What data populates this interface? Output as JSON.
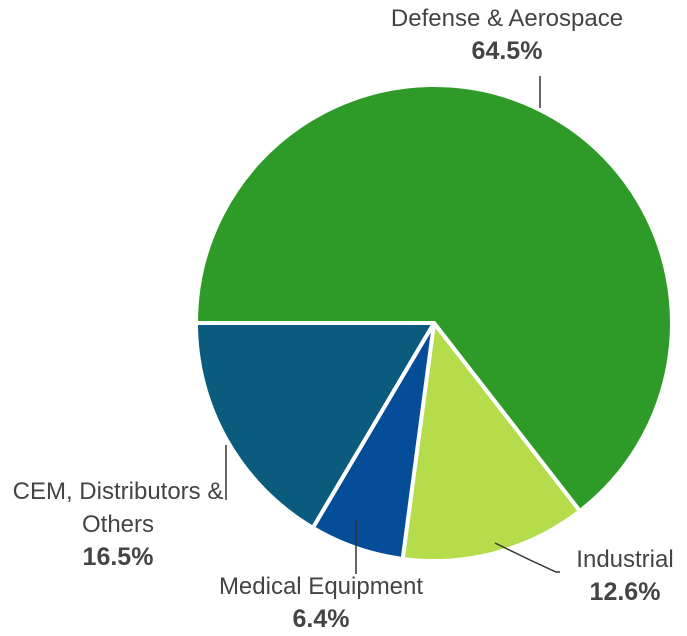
{
  "chart_data": {
    "type": "pie",
    "categories": [
      "Defense & Aerospace",
      "Industrial",
      "Medical Equipment",
      "CEM, Distributors & Others"
    ],
    "values": [
      64.5,
      12.6,
      6.4,
      16.5
    ],
    "value_labels": [
      "64.5%",
      "12.6%",
      "6.4%",
      "16.5%"
    ],
    "colors": [
      "#2e9b28",
      "#b4dc4b",
      "#054d99",
      "#0b5b7f"
    ]
  }
}
